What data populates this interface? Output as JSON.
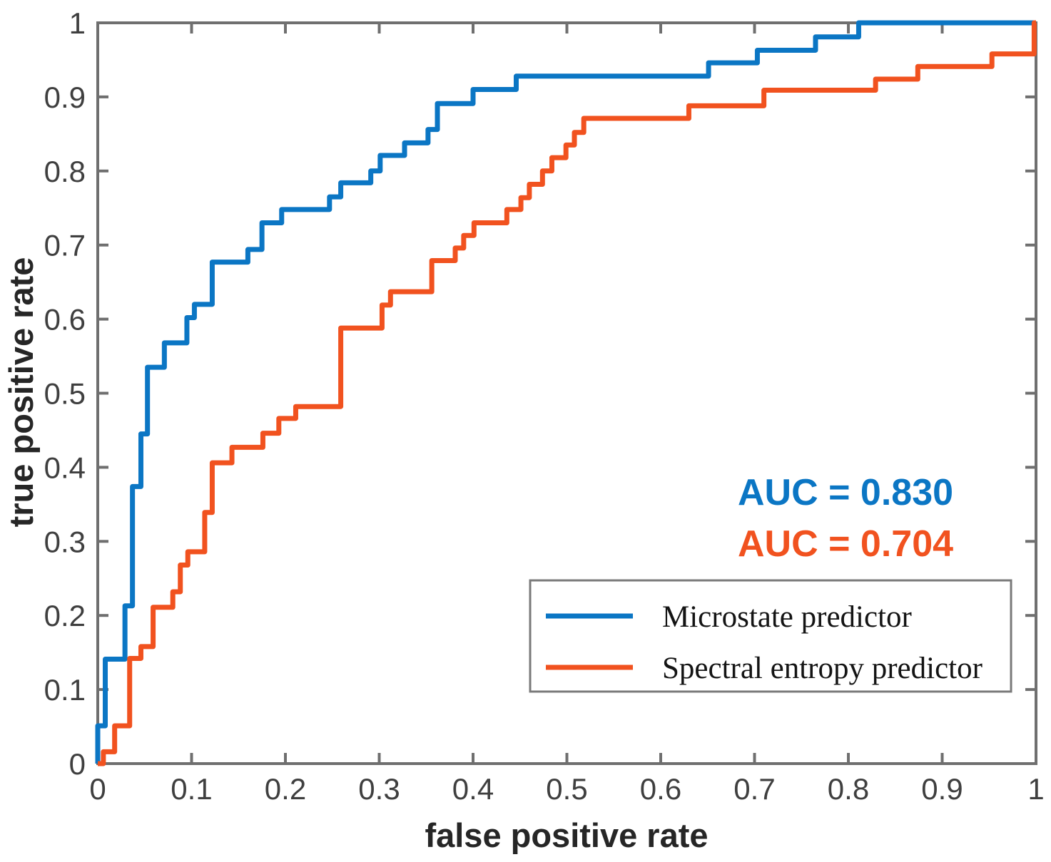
{
  "chart_data": {
    "type": "line",
    "subtype": "roc-step-curves",
    "title": "",
    "xlabel": "false positive rate",
    "ylabel": "true positive rate",
    "xlim": [
      0,
      1
    ],
    "ylim": [
      0,
      1
    ],
    "grid": false,
    "box": true,
    "tick_direction": "in",
    "x_ticks": [
      "0",
      "0.1",
      "0.2",
      "0.3",
      "0.4",
      "0.5",
      "0.6",
      "0.7",
      "0.8",
      "0.9",
      "1"
    ],
    "y_ticks": [
      "0",
      "0.1",
      "0.2",
      "0.3",
      "0.4",
      "0.5",
      "0.6",
      "0.7",
      "0.8",
      "0.9",
      "1"
    ],
    "axis_color": "#6f6f6f",
    "tick_label_color": "#3f3f3f",
    "legend_position": "inside lower right",
    "series": [
      {
        "name": "Microstate predictor",
        "color": "#0b76c4",
        "auc": 0.83,
        "auc_label": "AUC = 0.830",
        "start": [
          0,
          0
        ],
        "steps": [
          [
            0.0,
            0.051
          ],
          [
            0.008,
            0.141
          ],
          [
            0.029,
            0.213
          ],
          [
            0.037,
            0.374
          ],
          [
            0.046,
            0.445
          ],
          [
            0.053,
            0.535
          ],
          [
            0.071,
            0.568
          ],
          [
            0.095,
            0.602
          ],
          [
            0.103,
            0.62
          ],
          [
            0.122,
            0.677
          ],
          [
            0.16,
            0.694
          ],
          [
            0.175,
            0.73
          ],
          [
            0.196,
            0.748
          ],
          [
            0.247,
            0.765
          ],
          [
            0.259,
            0.784
          ],
          [
            0.291,
            0.8
          ],
          [
            0.301,
            0.821
          ],
          [
            0.327,
            0.838
          ],
          [
            0.352,
            0.856
          ],
          [
            0.362,
            0.891
          ],
          [
            0.4,
            0.91
          ],
          [
            0.446,
            0.928
          ],
          [
            0.651,
            0.946
          ],
          [
            0.703,
            0.963
          ],
          [
            0.765,
            0.981
          ],
          [
            0.811,
            1.0
          ]
        ],
        "end": [
          1,
          1
        ]
      },
      {
        "name": "Spectral entropy predictor",
        "color": "#f1521f",
        "auc": 0.704,
        "auc_label": "AUC = 0.704",
        "start": [
          0,
          0
        ],
        "steps": [
          [
            0.006,
            0.016
          ],
          [
            0.018,
            0.051
          ],
          [
            0.034,
            0.142
          ],
          [
            0.046,
            0.158
          ],
          [
            0.059,
            0.211
          ],
          [
            0.08,
            0.232
          ],
          [
            0.088,
            0.268
          ],
          [
            0.096,
            0.286
          ],
          [
            0.114,
            0.339
          ],
          [
            0.122,
            0.406
          ],
          [
            0.143,
            0.427
          ],
          [
            0.176,
            0.446
          ],
          [
            0.193,
            0.466
          ],
          [
            0.211,
            0.482
          ],
          [
            0.259,
            0.588
          ],
          [
            0.303,
            0.619
          ],
          [
            0.312,
            0.637
          ],
          [
            0.356,
            0.679
          ],
          [
            0.381,
            0.696
          ],
          [
            0.39,
            0.713
          ],
          [
            0.401,
            0.73
          ],
          [
            0.436,
            0.748
          ],
          [
            0.451,
            0.764
          ],
          [
            0.46,
            0.782
          ],
          [
            0.474,
            0.8
          ],
          [
            0.484,
            0.818
          ],
          [
            0.499,
            0.835
          ],
          [
            0.508,
            0.852
          ],
          [
            0.518,
            0.871
          ],
          [
            0.63,
            0.888
          ],
          [
            0.71,
            0.909
          ],
          [
            0.829,
            0.924
          ],
          [
            0.874,
            0.941
          ],
          [
            0.953,
            0.958
          ],
          [
            0.998,
            1.0
          ]
        ],
        "end": [
          1,
          1
        ]
      }
    ],
    "legend": {
      "items": [
        "Microstate predictor",
        "Spectral entropy predictor"
      ],
      "border_color": "#7a7a7a",
      "background": "#ffffff"
    }
  }
}
